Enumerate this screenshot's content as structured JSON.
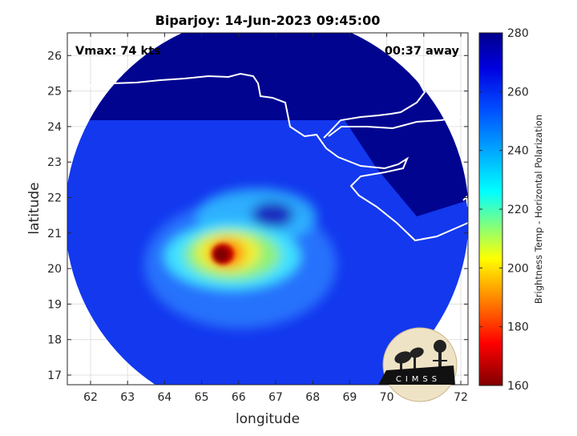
{
  "title": "Biparjoy: 14-Jun-2023 09:45:00",
  "annotations": {
    "vmax": "Vmax: 74 kts",
    "away": "00:37 away"
  },
  "axes": {
    "xlabel": "longitude",
    "ylabel": "latitude",
    "x_ticks": [
      "62",
      "63",
      "64",
      "65",
      "66",
      "67",
      "68",
      "69",
      "70",
      "71",
      "72"
    ],
    "y_ticks": [
      "17",
      "18",
      "19",
      "20",
      "21",
      "22",
      "23",
      "24",
      "25",
      "26"
    ]
  },
  "colorbar": {
    "label": "Brightness Temp - Horizontal Polarization",
    "ticks": [
      "160",
      "180",
      "200",
      "220",
      "240",
      "260",
      "280"
    ]
  },
  "logo": {
    "text": "CIMSS"
  },
  "colors": {
    "cold": "#8b0000",
    "warm": "#00008b",
    "coast": "#ffffff"
  }
}
